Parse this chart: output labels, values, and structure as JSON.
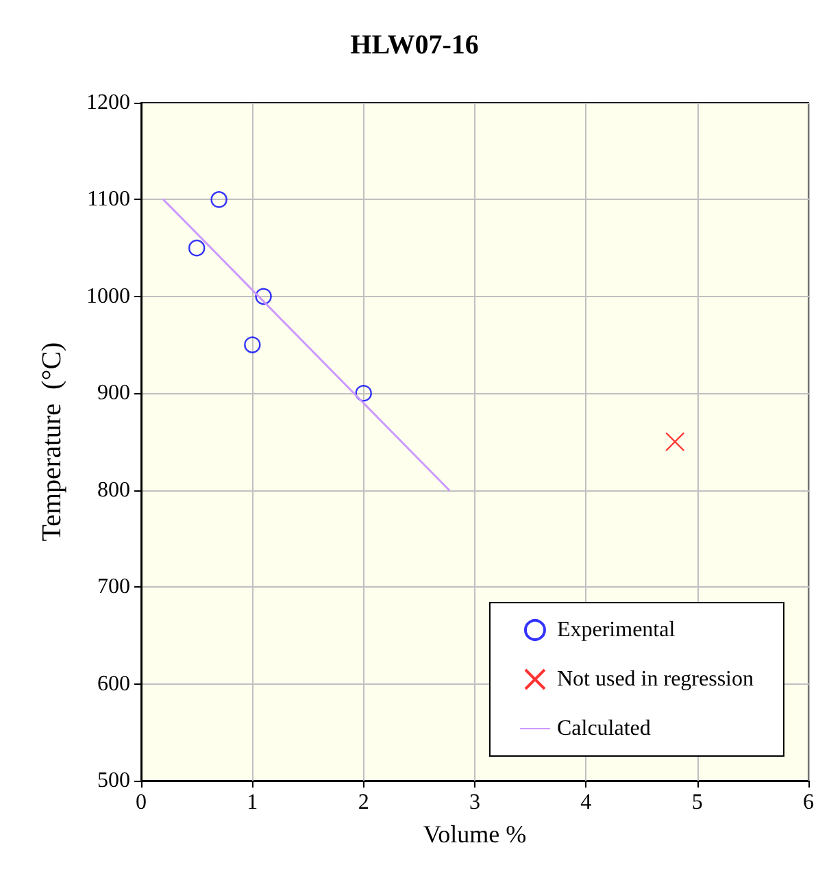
{
  "chart_data": {
    "type": "scatter",
    "title": "HLW07-16",
    "xlabel": "Volume %",
    "ylabel": "Temperature  (°C)",
    "xlim": [
      0,
      6
    ],
    "xticks": [
      0,
      1,
      2,
      3,
      4,
      5,
      6
    ],
    "ylim": [
      500,
      1200
    ],
    "yticks": [
      500,
      600,
      700,
      800,
      900,
      1000,
      1100,
      1200
    ],
    "grid": true,
    "legend": "bottom right",
    "series": [
      {
        "name": "Experimental",
        "marker": "circle",
        "color": "#0000ff",
        "x": [
          0.5,
          0.7,
          1.1,
          1.0,
          2.0
        ],
        "values": [
          1050,
          1100,
          1000,
          950,
          900
        ]
      },
      {
        "name": "Not used in regression",
        "marker": "cross",
        "color": "#ff0000",
        "x": [
          4.8
        ],
        "values": [
          850
        ]
      },
      {
        "name": "Calculated",
        "type": "line",
        "marker": "none",
        "color": "#cc99ff",
        "x": [
          0.2,
          2.77
        ],
        "values": [
          1100,
          800
        ]
      }
    ]
  }
}
